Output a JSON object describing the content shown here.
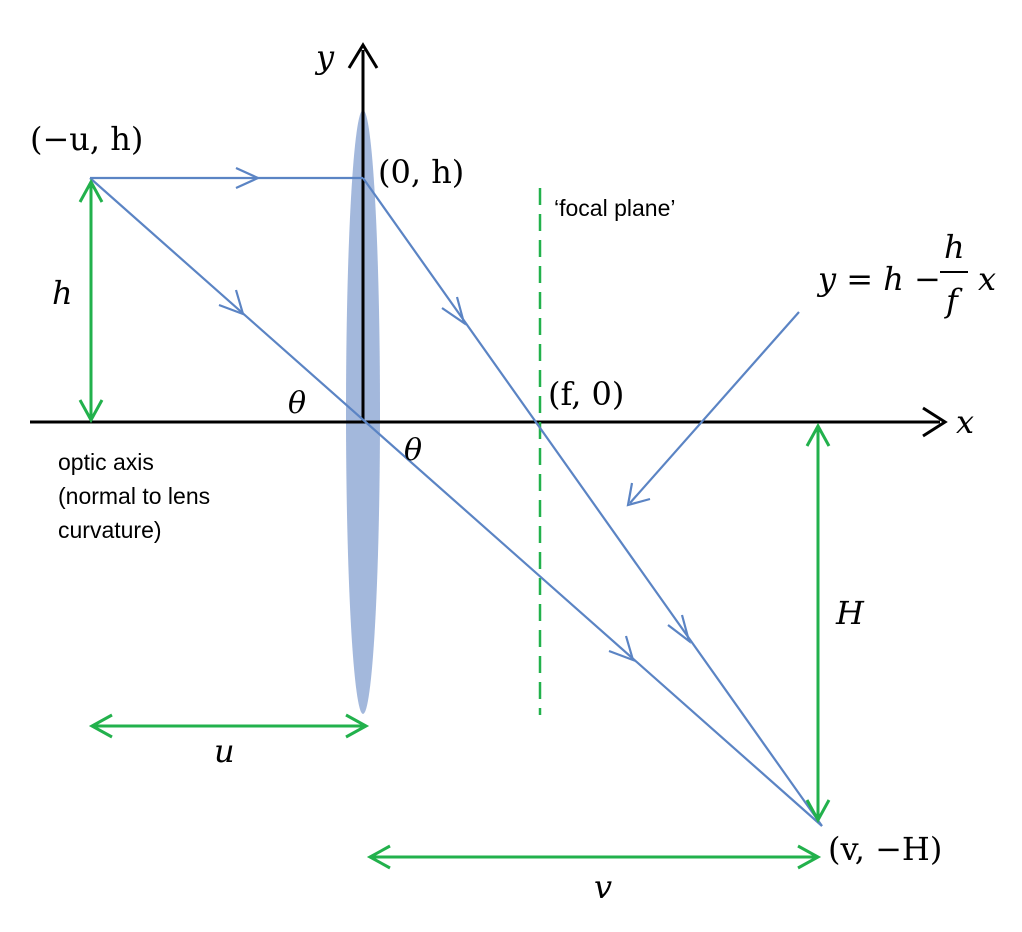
{
  "labels": {
    "y_axis": "y",
    "x_axis": "x",
    "object_point": "(−u, h)",
    "lens_top_point": "(0, h)",
    "focal_point": "(f, 0)",
    "image_point": "(v, −H)",
    "focal_plane": "‘focal plane’",
    "optic_axis_line1": "optic axis",
    "optic_axis_line2": "(normal to lens",
    "optic_axis_line3": "curvature)",
    "height_h": "h",
    "height_H": "H",
    "distance_u": "u",
    "distance_v": "v",
    "angle_left": "θ",
    "angle_right": "θ"
  },
  "equation": {
    "lhs": "y = h −",
    "frac_num": "h",
    "frac_den": "f",
    "rhs": "x"
  },
  "colors": {
    "ray": "#5b84c4",
    "lens": "#a3b8dc",
    "dimension": "#22b14c",
    "axis": "#000000"
  }
}
